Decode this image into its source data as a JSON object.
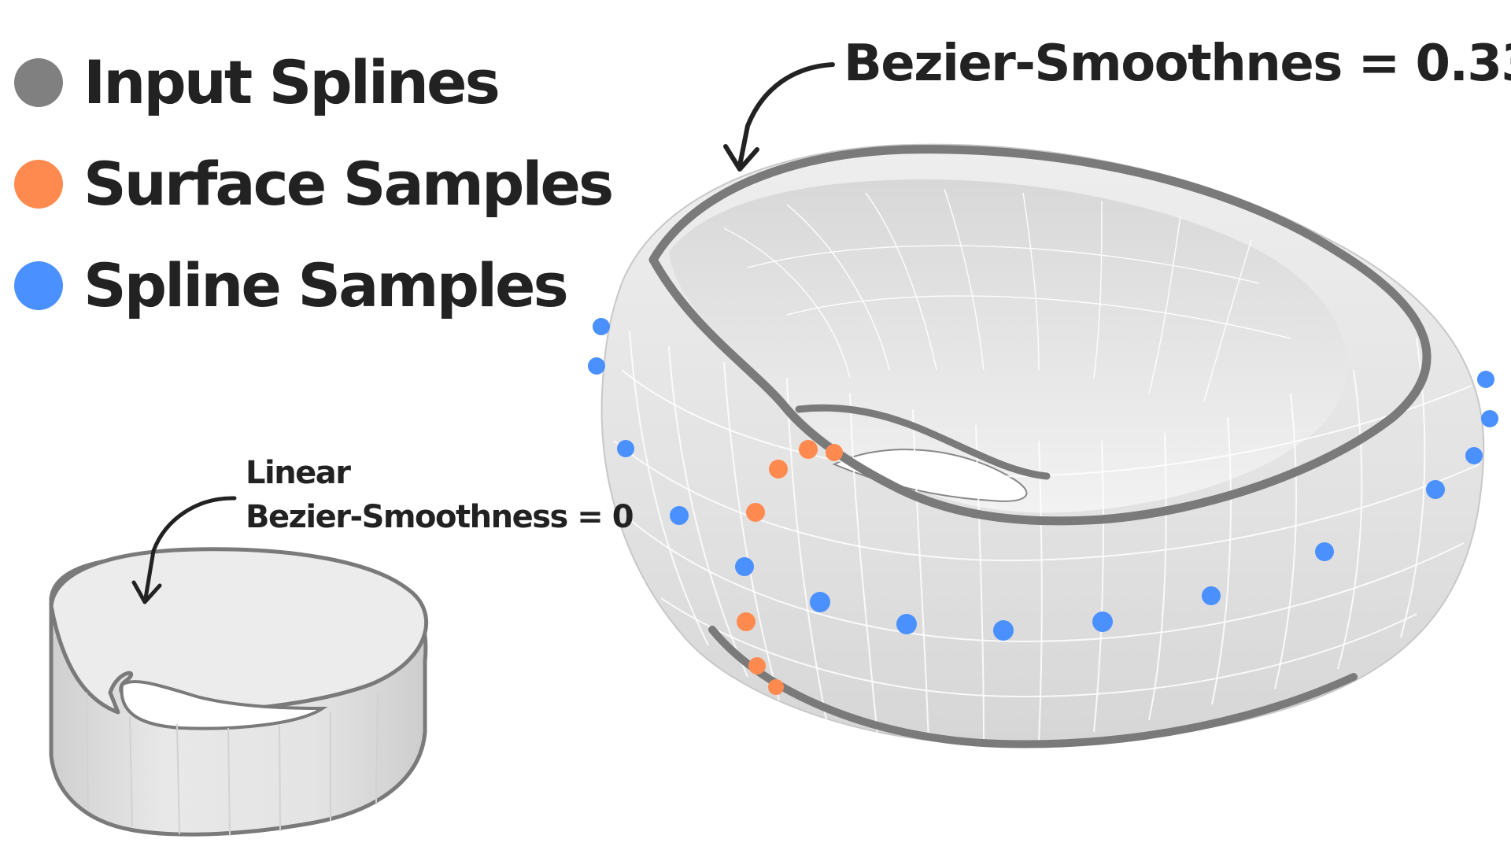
{
  "legend": {
    "items": [
      {
        "label": "Input Splines",
        "color": "#808080",
        "icon": "gray-dot"
      },
      {
        "label": "Surface Samples",
        "color": "#ff8a50",
        "icon": "orange-dot"
      },
      {
        "label": "Spline Samples",
        "color": "#4a90ff",
        "icon": "blue-dot"
      }
    ]
  },
  "annotations": {
    "large_shape": "Bezier-Smoothnes = 0.33",
    "small_shape_line1": "Linear",
    "small_shape_line2": "Bezier-Smoothness = 0"
  },
  "colors": {
    "surface": "#e6e6e6",
    "edge": "#7a7a7a",
    "text": "#222222"
  }
}
